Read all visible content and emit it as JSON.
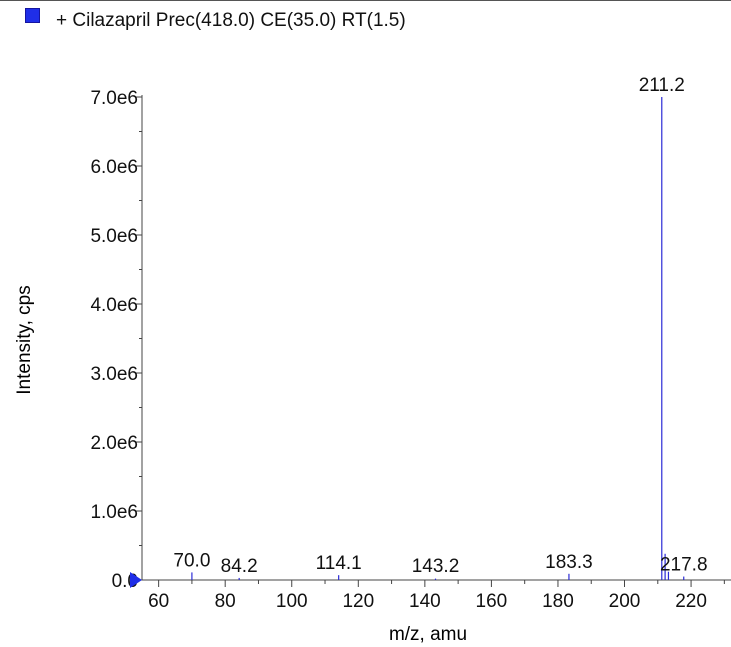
{
  "legend": {
    "label": "+ Cilazapril Prec(418.0) CE(35.0) RT(1.5)",
    "swatch_color": "#1f2ee8"
  },
  "chart_data": {
    "type": "bar",
    "title": "",
    "xlabel": "m/z, amu",
    "ylabel": "Intensity, cps",
    "xlim": [
      55,
      232
    ],
    "ylim": [
      0,
      7000000
    ],
    "xticks": [
      60,
      80,
      100,
      120,
      140,
      160,
      180,
      200,
      220
    ],
    "xtick_labels": [
      "60",
      "80",
      "100",
      "120",
      "140",
      "160",
      "180",
      "200",
      "220"
    ],
    "yticks": [
      0,
      1000000,
      2000000,
      3000000,
      4000000,
      5000000,
      6000000,
      7000000
    ],
    "ytick_labels": [
      "0.0",
      "1.0e6",
      "2.0e6",
      "3.0e6",
      "4.0e6",
      "5.0e6",
      "6.0e6",
      "7.0e6"
    ],
    "series_color": "#2b2bd6",
    "series": [
      {
        "name": "+ Cilazapril Prec(418.0) CE(35.0) RT(1.5)",
        "x": [
          70.0,
          84.2,
          114.1,
          143.2,
          183.3,
          211.2,
          212.2,
          213.2,
          217.8
        ],
        "values": [
          110000,
          30000,
          70000,
          20000,
          90000,
          7000000,
          380000,
          120000,
          50000
        ]
      }
    ],
    "annotations": [
      {
        "x": 70.0,
        "y": 110000,
        "text": "70.0"
      },
      {
        "x": 84.2,
        "y": 30000,
        "text": "84.2"
      },
      {
        "x": 114.1,
        "y": 70000,
        "text": "114.1"
      },
      {
        "x": 143.2,
        "y": 20000,
        "text": "143.2"
      },
      {
        "x": 183.3,
        "y": 90000,
        "text": "183.3"
      },
      {
        "x": 211.2,
        "y": 7000000,
        "text": "211.2"
      },
      {
        "x": 217.8,
        "y": 50000,
        "text": "217.8"
      }
    ]
  }
}
